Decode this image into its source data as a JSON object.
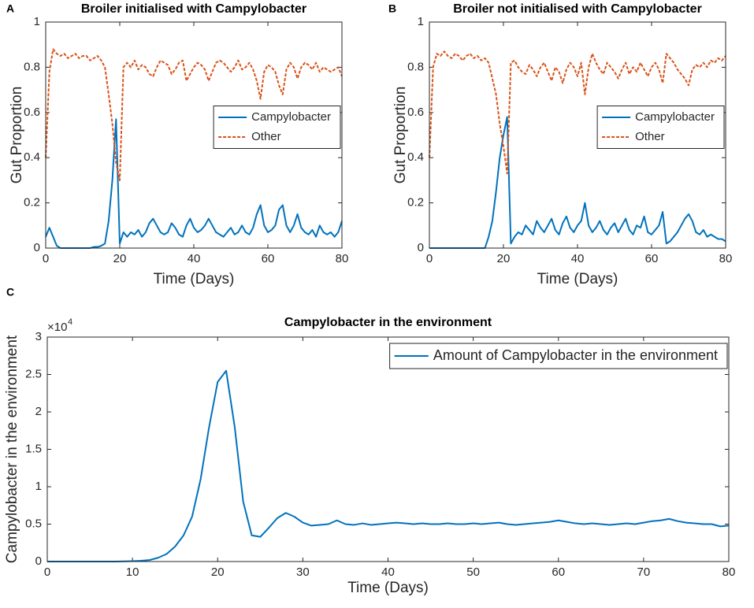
{
  "chart_data": [
    {
      "type": "line",
      "panel": "A",
      "title": "Broiler initialised with Campylobacter",
      "xlabel": "Time (Days)",
      "ylabel": "Gut Proportion",
      "x": [
        0,
        1,
        2,
        3,
        4,
        5,
        6,
        7,
        8,
        9,
        10,
        11,
        12,
        13,
        14,
        15,
        16,
        17,
        18,
        19,
        20,
        21,
        22,
        23,
        24,
        25,
        26,
        27,
        28,
        29,
        30,
        31,
        32,
        33,
        34,
        35,
        36,
        37,
        38,
        39,
        40,
        41,
        42,
        43,
        44,
        45,
        46,
        47,
        48,
        49,
        50,
        51,
        52,
        53,
        54,
        55,
        56,
        57,
        58,
        59,
        60,
        61,
        62,
        63,
        64,
        65,
        66,
        67,
        68,
        69,
        70,
        71,
        72,
        73,
        74,
        75,
        76,
        77,
        78,
        79,
        80
      ],
      "series": [
        {
          "name": "Campylobacter",
          "color": "#0072bd",
          "line_style": "solid",
          "values": [
            0.05,
            0.09,
            0.05,
            0.01,
            0.0,
            0.0,
            0.0,
            0.0,
            0.0,
            0.0,
            0.0,
            0.0,
            0.0,
            0.005,
            0.005,
            0.01,
            0.02,
            0.12,
            0.3,
            0.57,
            0.02,
            0.07,
            0.05,
            0.07,
            0.06,
            0.08,
            0.05,
            0.07,
            0.11,
            0.13,
            0.1,
            0.07,
            0.06,
            0.07,
            0.11,
            0.09,
            0.06,
            0.05,
            0.1,
            0.13,
            0.09,
            0.07,
            0.08,
            0.1,
            0.13,
            0.1,
            0.07,
            0.06,
            0.05,
            0.07,
            0.09,
            0.06,
            0.07,
            0.1,
            0.07,
            0.06,
            0.09,
            0.15,
            0.19,
            0.1,
            0.07,
            0.08,
            0.1,
            0.17,
            0.19,
            0.1,
            0.07,
            0.1,
            0.15,
            0.09,
            0.07,
            0.06,
            0.08,
            0.05,
            0.1,
            0.07,
            0.06,
            0.07,
            0.05,
            0.07,
            0.12
          ]
        },
        {
          "name": "Other",
          "color": "#d95319",
          "line_style": "dashed",
          "values": [
            0.4,
            0.78,
            0.88,
            0.86,
            0.85,
            0.86,
            0.84,
            0.85,
            0.86,
            0.84,
            0.85,
            0.85,
            0.83,
            0.84,
            0.85,
            0.83,
            0.8,
            0.68,
            0.55,
            0.38,
            0.3,
            0.8,
            0.82,
            0.8,
            0.83,
            0.79,
            0.81,
            0.8,
            0.77,
            0.76,
            0.8,
            0.83,
            0.82,
            0.81,
            0.77,
            0.79,
            0.82,
            0.83,
            0.74,
            0.77,
            0.8,
            0.82,
            0.81,
            0.79,
            0.74,
            0.78,
            0.82,
            0.83,
            0.82,
            0.8,
            0.78,
            0.8,
            0.83,
            0.79,
            0.8,
            0.82,
            0.79,
            0.74,
            0.66,
            0.78,
            0.81,
            0.8,
            0.78,
            0.72,
            0.68,
            0.79,
            0.82,
            0.8,
            0.75,
            0.8,
            0.82,
            0.81,
            0.79,
            0.82,
            0.78,
            0.8,
            0.79,
            0.78,
            0.79,
            0.8,
            0.76
          ]
        }
      ],
      "xlim": [
        0,
        80
      ],
      "xticks": [
        0,
        20,
        40,
        60,
        80
      ],
      "ylim": [
        0,
        1
      ],
      "yticks": [
        0,
        0.2,
        0.4,
        0.6,
        0.8,
        1
      ],
      "legend": "right"
    },
    {
      "type": "line",
      "panel": "B",
      "title": "Broiler not initialised with Campylobacter",
      "xlabel": "Time (Days)",
      "ylabel": "Gut Proportion",
      "x": [
        0,
        1,
        2,
        3,
        4,
        5,
        6,
        7,
        8,
        9,
        10,
        11,
        12,
        13,
        14,
        15,
        16,
        17,
        18,
        19,
        20,
        21,
        22,
        23,
        24,
        25,
        26,
        27,
        28,
        29,
        30,
        31,
        32,
        33,
        34,
        35,
        36,
        37,
        38,
        39,
        40,
        41,
        42,
        43,
        44,
        45,
        46,
        47,
        48,
        49,
        50,
        51,
        52,
        53,
        54,
        55,
        56,
        57,
        58,
        59,
        60,
        61,
        62,
        63,
        64,
        65,
        66,
        67,
        68,
        69,
        70,
        71,
        72,
        73,
        74,
        75,
        76,
        77,
        78,
        79,
        80
      ],
      "series": [
        {
          "name": "Campylobacter",
          "color": "#0072bd",
          "line_style": "solid",
          "values": [
            0.0,
            0.0,
            0.0,
            0.0,
            0.0,
            0.0,
            0.0,
            0.0,
            0.0,
            0.0,
            0.0,
            0.0,
            0.0,
            0.0,
            0.0,
            0.0,
            0.05,
            0.12,
            0.25,
            0.4,
            0.5,
            0.58,
            0.02,
            0.05,
            0.07,
            0.06,
            0.1,
            0.08,
            0.06,
            0.12,
            0.09,
            0.07,
            0.1,
            0.13,
            0.08,
            0.06,
            0.11,
            0.14,
            0.09,
            0.07,
            0.1,
            0.12,
            0.2,
            0.1,
            0.07,
            0.09,
            0.12,
            0.08,
            0.06,
            0.09,
            0.11,
            0.07,
            0.1,
            0.13,
            0.08,
            0.06,
            0.1,
            0.09,
            0.14,
            0.07,
            0.06,
            0.08,
            0.1,
            0.16,
            0.02,
            0.03,
            0.05,
            0.07,
            0.1,
            0.13,
            0.15,
            0.12,
            0.07,
            0.06,
            0.08,
            0.05,
            0.06,
            0.05,
            0.04,
            0.04,
            0.03
          ]
        },
        {
          "name": "Other",
          "color": "#d95319",
          "line_style": "dashed",
          "values": [
            0.4,
            0.8,
            0.86,
            0.85,
            0.87,
            0.85,
            0.84,
            0.86,
            0.85,
            0.83,
            0.85,
            0.86,
            0.84,
            0.85,
            0.83,
            0.84,
            0.82,
            0.75,
            0.68,
            0.55,
            0.45,
            0.33,
            0.82,
            0.83,
            0.8,
            0.78,
            0.77,
            0.81,
            0.79,
            0.76,
            0.8,
            0.82,
            0.78,
            0.74,
            0.8,
            0.78,
            0.73,
            0.79,
            0.82,
            0.8,
            0.76,
            0.82,
            0.68,
            0.8,
            0.86,
            0.82,
            0.79,
            0.77,
            0.82,
            0.8,
            0.78,
            0.75,
            0.79,
            0.82,
            0.77,
            0.8,
            0.78,
            0.82,
            0.79,
            0.76,
            0.8,
            0.82,
            0.79,
            0.73,
            0.86,
            0.84,
            0.82,
            0.79,
            0.77,
            0.75,
            0.72,
            0.79,
            0.81,
            0.8,
            0.82,
            0.8,
            0.83,
            0.82,
            0.84,
            0.83,
            0.85
          ]
        }
      ],
      "xlim": [
        0,
        80
      ],
      "xticks": [
        0,
        20,
        40,
        60,
        80
      ],
      "ylim": [
        0,
        1
      ],
      "yticks": [
        0,
        0.2,
        0.4,
        0.6,
        0.8,
        1
      ],
      "legend": "right"
    },
    {
      "type": "line",
      "panel": "C",
      "title": "Campylobacter in the environment",
      "xlabel": "Time (Days)",
      "ylabel": "Campylobacter in the environment",
      "y_exponent_base": "×10",
      "y_exponent_power": "4",
      "x": [
        0,
        1,
        2,
        3,
        4,
        5,
        6,
        7,
        8,
        9,
        10,
        11,
        12,
        13,
        14,
        15,
        16,
        17,
        18,
        19,
        20,
        21,
        22,
        23,
        24,
        25,
        26,
        27,
        28,
        29,
        30,
        31,
        32,
        33,
        34,
        35,
        36,
        37,
        38,
        39,
        40,
        41,
        42,
        43,
        44,
        45,
        46,
        47,
        48,
        49,
        50,
        51,
        52,
        53,
        54,
        55,
        56,
        57,
        58,
        59,
        60,
        61,
        62,
        63,
        64,
        65,
        66,
        67,
        68,
        69,
        70,
        71,
        72,
        73,
        74,
        75,
        76,
        77,
        78,
        79,
        80
      ],
      "series": [
        {
          "name": "Amount of Campylobacter in the environment",
          "color": "#0072bd",
          "line_style": "solid",
          "values": [
            0,
            0,
            0,
            0,
            0,
            0,
            0,
            0,
            0,
            20,
            50,
            100,
            200,
            500,
            1000,
            2000,
            3500,
            6000,
            11000,
            18000,
            24000,
            25500,
            18000,
            8000,
            3500,
            3300,
            4500,
            5800,
            6500,
            6000,
            5200,
            4800,
            4900,
            5000,
            5500,
            5000,
            4900,
            5100,
            4900,
            5000,
            5100,
            5200,
            5100,
            5000,
            5100,
            5000,
            5000,
            5100,
            5000,
            5000,
            5100,
            5000,
            5100,
            5200,
            5000,
            4900,
            5000,
            5100,
            5200,
            5300,
            5500,
            5300,
            5100,
            5000,
            5100,
            5000,
            4900,
            5000,
            5100,
            5000,
            5200,
            5400,
            5500,
            5700,
            5400,
            5200,
            5100,
            5000,
            5000,
            4700,
            4800
          ]
        }
      ],
      "xlim": [
        0,
        80
      ],
      "xticks": [
        0,
        10,
        20,
        30,
        40,
        50,
        60,
        70,
        80
      ],
      "ylim": [
        0,
        30000
      ],
      "yticks": [
        {
          "value": 0,
          "label": "0"
        },
        {
          "value": 5000,
          "label": "0.5"
        },
        {
          "value": 10000,
          "label": "1"
        },
        {
          "value": 15000,
          "label": "1.5"
        },
        {
          "value": 20000,
          "label": "2"
        },
        {
          "value": 25000,
          "label": "2.5"
        },
        {
          "value": 30000,
          "label": "3"
        }
      ],
      "legend": "upper right"
    }
  ]
}
